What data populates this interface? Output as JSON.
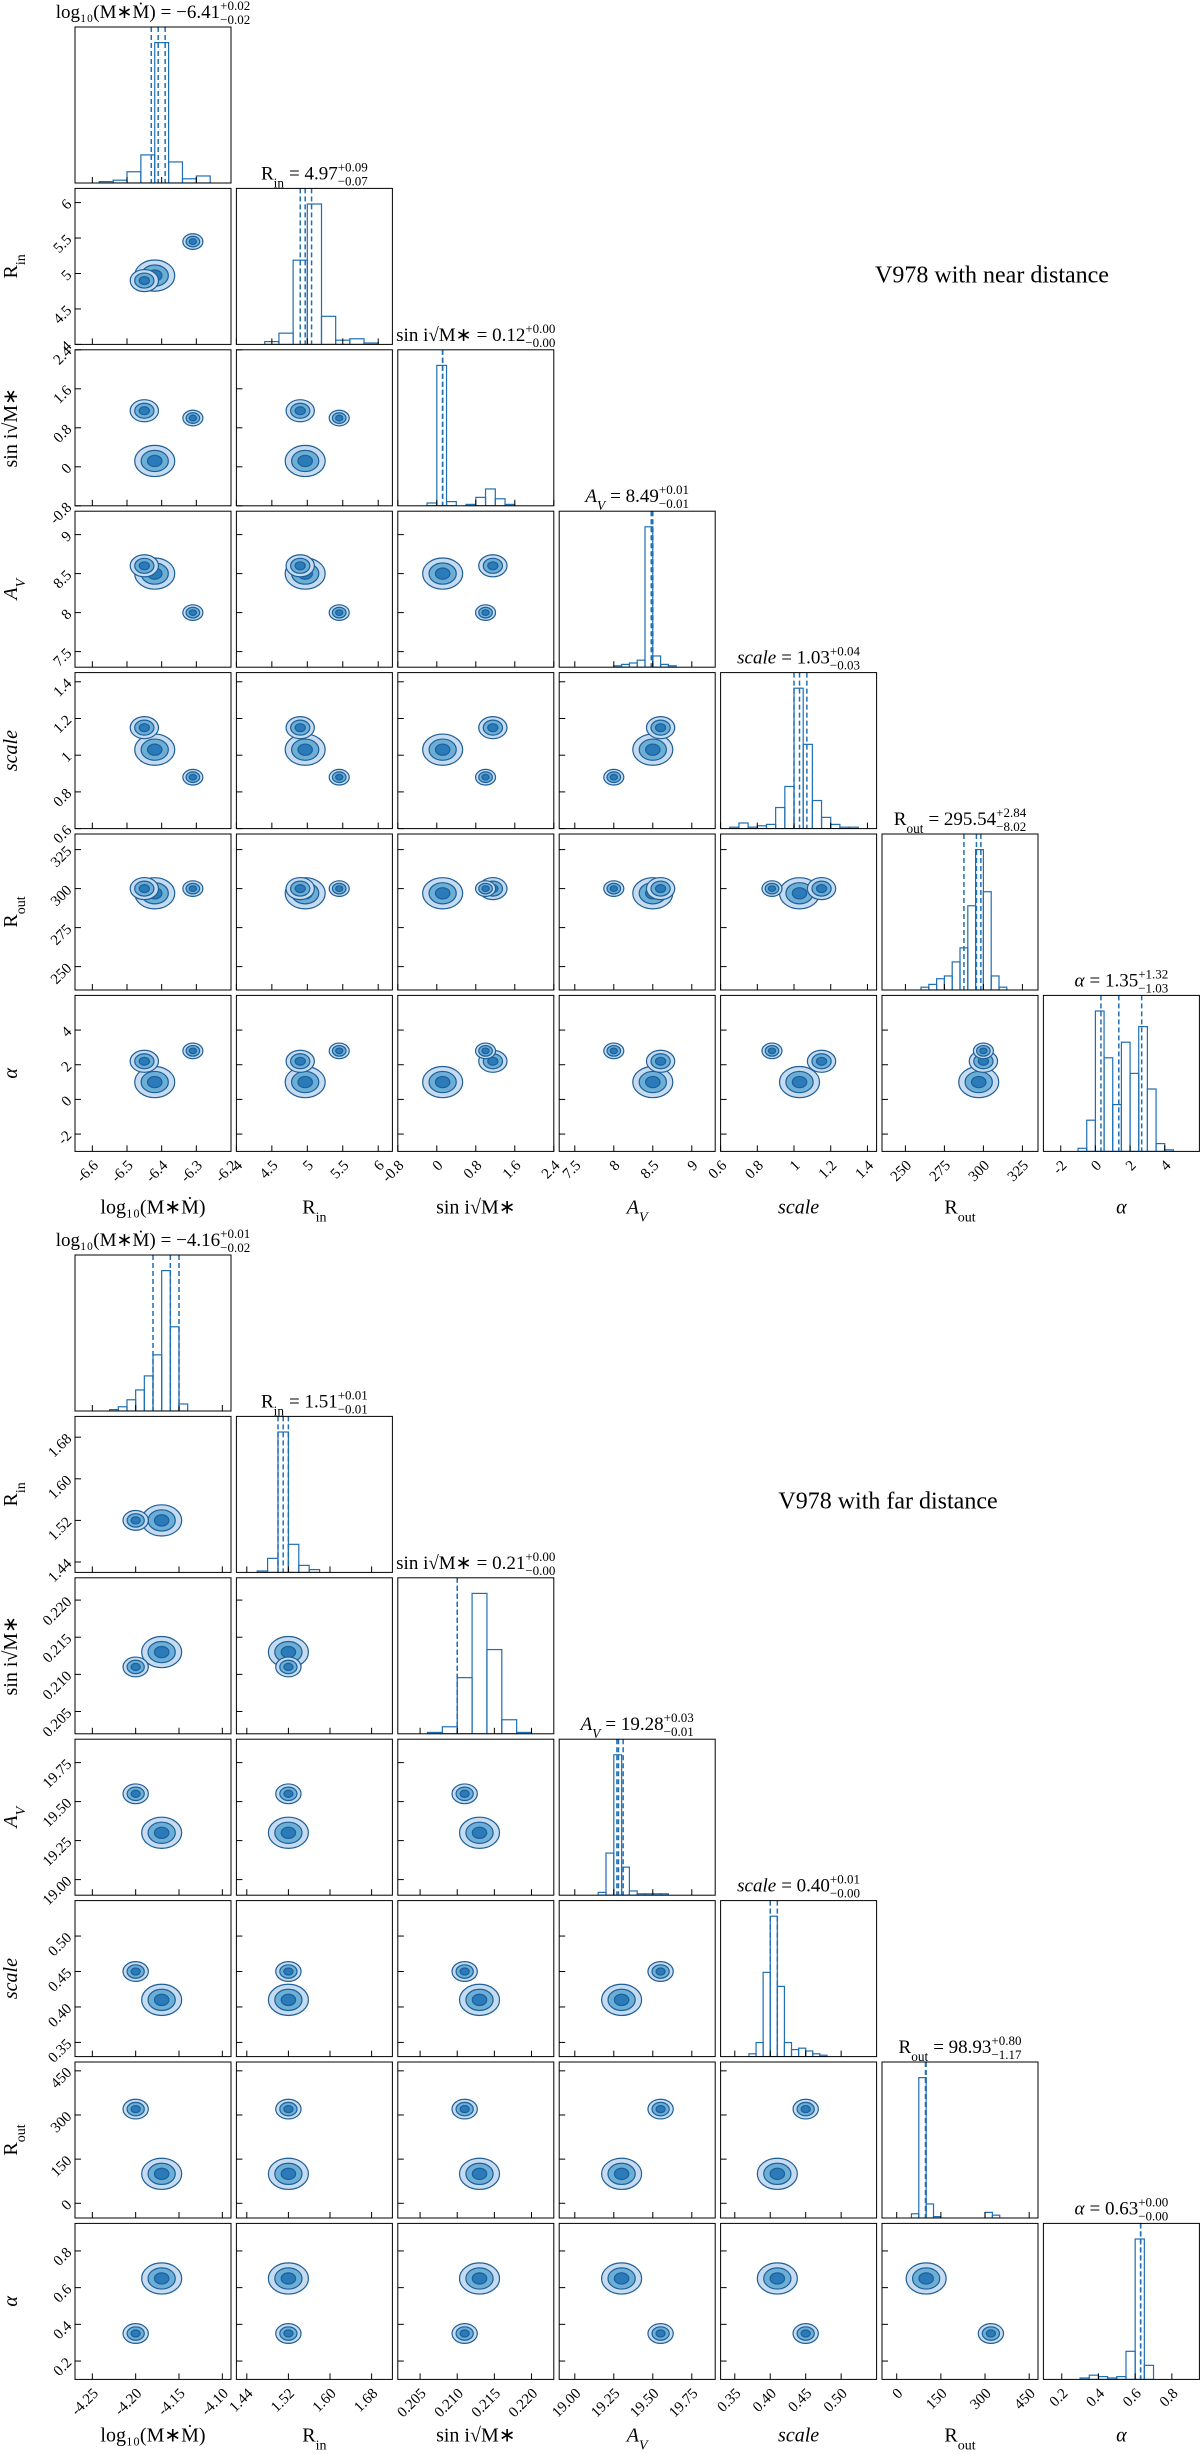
{
  "figures": [
    {
      "label": "V978 with near distance",
      "params": [
        {
          "symbol": "log₁₀(M∗Ṁ)",
          "title_value": "= −6.41",
          "title_sup": "+0.02",
          "title_sub": "−0.02",
          "median": -6.41,
          "plus": 0.02,
          "minus": 0.02,
          "lim": [
            -6.65,
            -6.2
          ],
          "ticks": [
            -6.6,
            -6.5,
            -6.4,
            -6.3,
            -6.2
          ],
          "hist": {
            "bins": [
              -6.62,
              -6.58,
              -6.54,
              -6.5,
              -6.46,
              -6.42,
              -6.38,
              -6.34,
              -6.3,
              -6.26,
              -6.22
            ],
            "counts": [
              0,
              1,
              2,
              8,
              20,
              100,
              15,
              3,
              5,
              0
            ]
          }
        },
        {
          "symbol": "R",
          "symbol_sub": "in",
          "title_value": "= 4.97",
          "title_sup": "+0.09",
          "title_sub": "−0.07",
          "median": 4.97,
          "plus": 0.09,
          "minus": 0.07,
          "lim": [
            4.0,
            6.2
          ],
          "ticks": [
            4.0,
            4.5,
            5.0,
            5.5,
            6.0
          ],
          "hist": {
            "bins": [
              4.0,
              4.2,
              4.4,
              4.6,
              4.8,
              5.0,
              5.2,
              5.4,
              5.6,
              5.8,
              6.0,
              6.2
            ],
            "counts": [
              0,
              0,
              2,
              8,
              60,
              100,
              20,
              3,
              4,
              1,
              0
            ]
          }
        },
        {
          "symbol": "sin i√M∗",
          "title_value": "= 0.12",
          "title_sup": "+0.00",
          "title_sub": "−0.00",
          "median": 0.12,
          "plus": 0.0,
          "minus": 0.0,
          "lim": [
            -0.8,
            2.4
          ],
          "ticks": [
            -0.8,
            0.0,
            0.8,
            1.6,
            2.4
          ],
          "hist": {
            "bins": [
              -0.8,
              -0.6,
              -0.4,
              -0.2,
              0.0,
              0.2,
              0.4,
              0.6,
              0.8,
              1.0,
              1.2,
              1.4,
              1.6,
              1.8,
              2.0,
              2.2,
              2.4
            ],
            "counts": [
              0,
              0,
              0,
              2,
              100,
              3,
              0,
              1,
              6,
              12,
              5,
              1,
              0,
              0,
              0,
              0
            ]
          }
        },
        {
          "symbol": "A",
          "symbol_sub": "V",
          "italic": true,
          "title_value": "= 8.49",
          "title_sup": "+0.01",
          "title_sub": "−0.01",
          "median": 8.49,
          "plus": 0.01,
          "minus": 0.01,
          "lim": [
            7.3,
            9.3
          ],
          "ticks": [
            7.5,
            8.0,
            8.5,
            9.0
          ],
          "hist": {
            "bins": [
              7.3,
              7.4,
              7.5,
              7.6,
              7.7,
              7.8,
              7.9,
              8.0,
              8.1,
              8.2,
              8.3,
              8.4,
              8.5,
              8.6,
              8.7,
              8.8,
              8.9,
              9.0,
              9.1,
              9.2,
              9.3
            ],
            "counts": [
              0,
              0,
              0,
              0,
              0,
              0,
              0,
              1,
              2,
              3,
              5,
              100,
              8,
              2,
              1,
              0,
              0,
              0,
              0,
              0
            ]
          }
        },
        {
          "symbol": "scale",
          "italic": true,
          "title_value": "= 1.03",
          "title_sup": "+0.04",
          "title_sub": "−0.03",
          "median": 1.03,
          "plus": 0.04,
          "minus": 0.03,
          "lim": [
            0.6,
            1.45
          ],
          "ticks": [
            0.6,
            0.8,
            1.0,
            1.2,
            1.4
          ],
          "hist": {
            "bins": [
              0.6,
              0.65,
              0.7,
              0.75,
              0.8,
              0.85,
              0.9,
              0.95,
              1.0,
              1.05,
              1.1,
              1.15,
              1.2,
              1.25,
              1.3,
              1.35,
              1.4
            ],
            "counts": [
              0,
              1,
              4,
              1,
              2,
              3,
              15,
              30,
              100,
              60,
              20,
              8,
              3,
              1,
              1,
              0
            ]
          }
        },
        {
          "symbol": "R",
          "symbol_sub": "out",
          "title_value": "= 295.54",
          "title_sup": "+2.84",
          "title_sub": "−8.02",
          "median": 295.54,
          "plus": 2.84,
          "minus": 8.02,
          "lim": [
            235,
            335
          ],
          "ticks": [
            250,
            275,
            300,
            325
          ],
          "hist": {
            "bins": [
              235,
              240,
              245,
              250,
              255,
              260,
              265,
              270,
              275,
              280,
              285,
              290,
              295,
              300,
              305,
              310,
              315,
              320,
              325,
              330,
              335
            ],
            "counts": [
              0,
              0,
              0,
              0,
              0,
              2,
              4,
              8,
              10,
              20,
              30,
              60,
              100,
              70,
              10,
              2,
              0,
              0,
              0,
              0
            ]
          }
        },
        {
          "symbol": "α",
          "italic": true,
          "title_value": "= 1.35",
          "title_sup": "+1.32",
          "title_sub": "−1.03",
          "median": 1.35,
          "plus": 1.32,
          "minus": 1.03,
          "lim": [
            -3,
            6
          ],
          "ticks": [
            -2,
            0,
            2,
            4
          ],
          "hist": {
            "bins": [
              -3,
              -2.5,
              -2,
              -1.5,
              -1,
              -0.5,
              0,
              0.5,
              1,
              1.5,
              2,
              2.5,
              3,
              3.5,
              4,
              4.5,
              5,
              5.5,
              6
            ],
            "counts": [
              0,
              0,
              0,
              0,
              2,
              20,
              90,
              60,
              30,
              70,
              50,
              80,
              40,
              5,
              1,
              0,
              0,
              0
            ]
          }
        }
      ],
      "modes": [
        {
          "weight": 1,
          "at": [
            -6.42,
            4.97,
            0.12,
            8.5,
            1.03,
            297,
            1.0
          ]
        },
        {
          "weight": 0.5,
          "at": [
            -6.45,
            4.9,
            1.15,
            8.6,
            1.15,
            300,
            2.2
          ]
        },
        {
          "weight": 0.25,
          "at": [
            -6.31,
            5.45,
            1.0,
            8.0,
            0.88,
            300,
            2.8
          ]
        }
      ]
    },
    {
      "label": "V978 with far distance",
      "params": [
        {
          "symbol": "log₁₀(M∗Ṁ)",
          "title_value": "= −4.16",
          "title_sup": "+0.01",
          "title_sub": "−0.02",
          "median": -4.16,
          "plus": 0.01,
          "minus": 0.02,
          "lim": [
            -4.27,
            -4.09
          ],
          "ticks": [
            -4.25,
            {
              "value": -4.2,
              "label": "-4.20"
            },
            -4.15,
            {
              "value": -4.1,
              "label": "-4.10"
            }
          ],
          "hist": {
            "bins": [
              -4.27,
              -4.26,
              -4.25,
              -4.24,
              -4.23,
              -4.22,
              -4.21,
              -4.2,
              -4.19,
              -4.18,
              -4.17,
              -4.16,
              -4.15,
              -4.14,
              -4.13,
              -4.12,
              -4.11,
              -4.1,
              -4.09
            ],
            "counts": [
              0,
              0,
              0,
              0,
              1,
              3,
              8,
              15,
              25,
              40,
              100,
              60,
              5,
              0,
              0,
              0,
              0,
              0
            ]
          }
        },
        {
          "symbol": "R",
          "symbol_sub": "in",
          "title_value": "= 1.51",
          "title_sup": "+0.01",
          "title_sub": "−0.01",
          "median": 1.51,
          "plus": 0.01,
          "minus": 0.01,
          "lim": [
            1.42,
            1.72
          ],
          "ticks": [
            1.44,
            1.52,
            {
              "value": 1.6,
              "label": "1.60"
            },
            1.68
          ],
          "hist": {
            "bins": [
              1.42,
              1.44,
              1.46,
              1.48,
              1.5,
              1.52,
              1.54,
              1.56,
              1.58,
              1.6,
              1.62,
              1.64,
              1.66,
              1.68,
              1.7,
              1.72
            ],
            "counts": [
              0,
              0,
              1,
              10,
              100,
              20,
              5,
              2,
              0,
              0,
              0,
              0,
              0,
              0,
              0
            ]
          }
        },
        {
          "symbol": "sin i√M∗",
          "title_value": "= 0.21",
          "title_sup": "+0.00",
          "title_sub": "−0.00",
          "median": 0.21,
          "plus": 0.0,
          "minus": 0.0,
          "lim": [
            0.202,
            0.223
          ],
          "ticks": [
            0.205,
            {
              "value": 0.21,
              "label": "0.210"
            },
            0.215,
            {
              "value": 0.22,
              "label": "0.220"
            }
          ],
          "hist": {
            "bins": [
              0.202,
              0.204,
              0.206,
              0.208,
              0.21,
              0.212,
              0.214,
              0.216,
              0.218,
              0.22,
              0.222
            ],
            "counts": [
              0,
              0,
              1,
              5,
              40,
              100,
              60,
              10,
              1,
              0
            ]
          }
        },
        {
          "symbol": "A",
          "symbol_sub": "V",
          "italic": true,
          "title_value": "= 19.28",
          "title_sup": "+0.03",
          "title_sub": "−0.01",
          "median": 19.28,
          "plus": 0.03,
          "minus": 0.01,
          "lim": [
            18.9,
            19.9
          ],
          "ticks": [
            {
              "value": 19,
              "label": "19.00"
            },
            19.25,
            {
              "value": 19.5,
              "label": "19.50"
            },
            19.75
          ],
          "hist": {
            "bins": [
              18.9,
              18.95,
              19.0,
              19.05,
              19.1,
              19.15,
              19.2,
              19.25,
              19.3,
              19.35,
              19.4,
              19.45,
              19.5,
              19.55,
              19.6,
              19.65,
              19.7,
              19.75,
              19.8,
              19.85,
              19.9
            ],
            "counts": [
              0,
              0,
              0,
              0,
              0,
              2,
              30,
              100,
              20,
              3,
              1,
              1,
              1,
              1,
              0,
              0,
              0,
              0,
              0,
              0
            ]
          }
        },
        {
          "symbol": "scale",
          "italic": true,
          "title_value": "= 0.40",
          "title_sup": "+0.01",
          "title_sub": "−0.00",
          "median": 0.4,
          "plus": 0.01,
          "minus": 0.0,
          "lim": [
            0.33,
            0.55
          ],
          "ticks": [
            0.35,
            {
              "value": 0.4,
              "label": "0.40"
            },
            0.45,
            {
              "value": 0.5,
              "label": "0.50"
            }
          ],
          "hist": {
            "bins": [
              0.33,
              0.34,
              0.35,
              0.36,
              0.37,
              0.38,
              0.39,
              0.4,
              0.41,
              0.42,
              0.43,
              0.44,
              0.45,
              0.46,
              0.47,
              0.48,
              0.49,
              0.5,
              0.51,
              0.52,
              0.53,
              0.54,
              0.55
            ],
            "counts": [
              0,
              0,
              0,
              0,
              2,
              10,
              60,
              100,
              50,
              10,
              5,
              6,
              4,
              2,
              1,
              0,
              0,
              0,
              0,
              0,
              0,
              0
            ]
          }
        },
        {
          "symbol": "R",
          "symbol_sub": "out",
          "title_value": "= 98.93",
          "title_sup": "+0.80",
          "title_sub": "−1.17",
          "median": 98.93,
          "plus": 0.8,
          "minus": 1.17,
          "lim": [
            -50,
            480
          ],
          "ticks": [
            0,
            150,
            300,
            450
          ],
          "hist": {
            "bins": [
              -50,
              -25,
              0,
              25,
              50,
              75,
              100,
              125,
              150,
              175,
              200,
              225,
              250,
              275,
              300,
              325,
              350,
              375,
              400,
              425,
              450,
              475
            ],
            "counts": [
              0,
              0,
              0,
              0,
              3,
              100,
              10,
              1,
              0,
              0,
              0,
              0,
              0,
              0,
              4,
              2,
              0,
              0,
              0,
              0,
              0
            ]
          }
        },
        {
          "symbol": "α",
          "italic": true,
          "title_value": "= 0.63",
          "title_sup": "+0.00",
          "title_sub": "−0.00",
          "median": 0.63,
          "plus": 0.0,
          "minus": 0.0,
          "lim": [
            0.1,
            0.95
          ],
          "ticks": [
            0.2,
            0.4,
            0.6,
            0.8
          ],
          "hist": {
            "bins": [
              0.1,
              0.15,
              0.2,
              0.25,
              0.3,
              0.35,
              0.4,
              0.45,
              0.5,
              0.55,
              0.6,
              0.65,
              0.7,
              0.75,
              0.8,
              0.85,
              0.9,
              0.95
            ],
            "counts": [
              0,
              0,
              0,
              0,
              1,
              3,
              2,
              1,
              2,
              20,
              100,
              10,
              0,
              0,
              0,
              0,
              0
            ]
          }
        }
      ],
      "modes": [
        {
          "weight": 1,
          "at": [
            -4.17,
            1.52,
            0.213,
            19.3,
            0.41,
            100,
            0.65
          ]
        },
        {
          "weight": 0.4,
          "at": [
            -4.2,
            1.52,
            0.211,
            19.55,
            0.45,
            320,
            0.35
          ]
        }
      ]
    }
  ]
}
